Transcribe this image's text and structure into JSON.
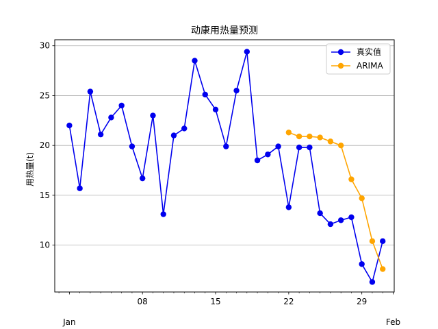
{
  "chart_data": {
    "type": "line",
    "title": "动康用热量预测",
    "ylabel": "用热量(t)",
    "xlabel": "",
    "x_major_ticks": [
      {
        "day": 8,
        "label": "08"
      },
      {
        "day": 15,
        "label": "15"
      },
      {
        "day": 22,
        "label": "22"
      },
      {
        "day": 29,
        "label": "29"
      }
    ],
    "x_month_labels": [
      {
        "day": 1,
        "label": "Jan"
      },
      {
        "day": 32,
        "label": "Feb"
      }
    ],
    "x_range_days": [
      -0.4,
      32.1
    ],
    "y_ticks": [
      10,
      15,
      20,
      25,
      30
    ],
    "ylim": [
      5.3,
      30.6
    ],
    "grid": "horizontal",
    "legend_position": "top-right",
    "series": [
      {
        "name": "真实值",
        "color": "#0000ee",
        "days": [
          1,
          2,
          3,
          4,
          5,
          6,
          7,
          8,
          9,
          10,
          11,
          12,
          13,
          14,
          15,
          16,
          17,
          18,
          19,
          20,
          21,
          22,
          23,
          24,
          25,
          26,
          27,
          28,
          29,
          30,
          31
        ],
        "values": [
          22.0,
          15.7,
          25.4,
          21.1,
          22.8,
          24.0,
          19.9,
          16.7,
          23.0,
          13.1,
          21.0,
          21.7,
          28.5,
          25.1,
          23.6,
          19.9,
          25.5,
          29.4,
          18.5,
          19.1,
          19.9,
          13.8,
          19.8,
          19.8,
          13.2,
          12.1,
          12.5,
          12.8,
          8.1,
          6.3,
          10.4
        ]
      },
      {
        "name": "ARIMA",
        "color": "#ffa500",
        "days": [
          22,
          23,
          24,
          25,
          26,
          27,
          28,
          29,
          30,
          31
        ],
        "values": [
          21.3,
          20.9,
          20.9,
          20.8,
          20.4,
          20.0,
          16.6,
          14.7,
          10.4,
          7.6
        ]
      }
    ]
  }
}
